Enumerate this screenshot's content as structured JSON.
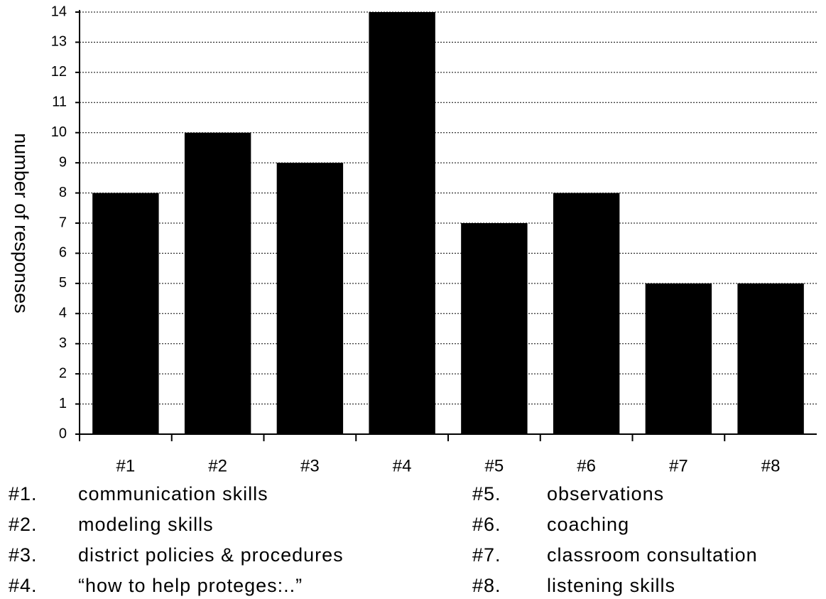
{
  "chart_data": {
    "type": "bar",
    "ylabel": "number of responses",
    "categories": [
      "#1",
      "#2",
      "#3",
      "#4",
      "#5",
      "#6",
      "#7",
      "#8"
    ],
    "values": [
      8,
      10,
      9,
      14,
      7,
      8,
      5,
      5
    ],
    "color": "#000000",
    "ylim": [
      0,
      14
    ],
    "yticks": [
      0,
      1,
      2,
      3,
      4,
      5,
      6,
      7,
      8,
      9,
      10,
      11,
      12,
      13,
      14
    ],
    "grid": true,
    "key": [
      {
        "label": "#1.",
        "text": "communication skills"
      },
      {
        "label": "#2.",
        "text": "modeling skills"
      },
      {
        "label": "#3.",
        "text": "district policies & procedures"
      },
      {
        "label": "#4.",
        "text": "“how to help proteges:..”"
      },
      {
        "label": "#5.",
        "text": "observations"
      },
      {
        "label": "#6.",
        "text": "coaching"
      },
      {
        "label": "#7.",
        "text": "classroom consultation"
      },
      {
        "label": "#8.",
        "text": "listening skills"
      }
    ]
  }
}
